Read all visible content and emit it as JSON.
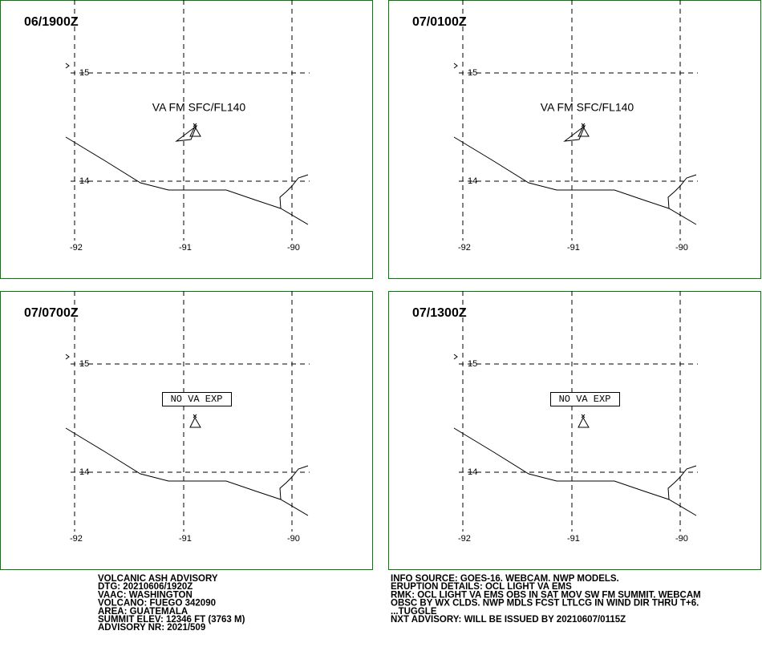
{
  "panels": [
    {
      "time": "06/1900Z",
      "annotation": "VA FM SFC/FL140",
      "lat_labels": [
        "15",
        "14"
      ],
      "lon_labels": [
        "-92",
        "-91",
        "-90"
      ]
    },
    {
      "time": "07/0100Z",
      "annotation": "VA FM SFC/FL140",
      "lat_labels": [
        "15",
        "14"
      ],
      "lon_labels": [
        "-92",
        "-91",
        "-90"
      ]
    },
    {
      "time": "07/0700Z",
      "annotation": "NO VA EXP",
      "lat_labels": [
        "15",
        "14"
      ],
      "lon_labels": [
        "-92",
        "-91",
        "-90"
      ]
    },
    {
      "time": "07/1300Z",
      "annotation": "NO VA EXP",
      "lat_labels": [
        "15",
        "14"
      ],
      "lon_labels": [
        "-92",
        "-91",
        "-90"
      ]
    }
  ],
  "advisory_left": [
    "VOLCANIC ASH ADVISORY",
    "DTG: 20210606/1920Z",
    "VAAC: WASHINGTON",
    "VOLCANO: FUEGO 342090",
    "AREA: GUATEMALA",
    "SUMMIT ELEV: 12346 FT (3763 M)",
    "ADVISORY NR: 2021/509"
  ],
  "advisory_right": [
    "INFO SOURCE: GOES-16. WEBCAM. NWP MODELS.",
    "ERUPTION DETAILS: OCL LIGHT VA EMS",
    "RMK: OCL LIGHT VA EMS OBS IN SAT MOV SW FM SUMMIT. WEBCAM",
    "OBSC BY WX CLDS. NWP MDLS FCST LTLCG IN WIND DIR THRU T+6.",
    "...TUGGLE",
    "NXT ADVISORY: WILL BE ISSUED BY 20210607/0115Z"
  ]
}
